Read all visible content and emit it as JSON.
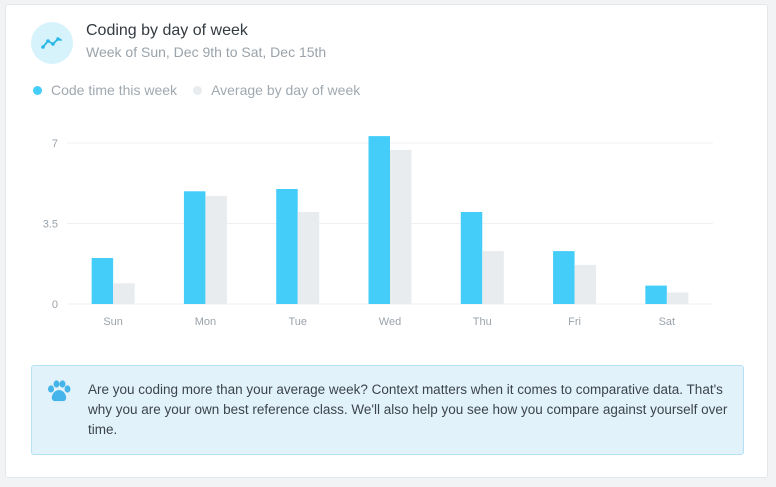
{
  "header": {
    "title": "Coding by day of week",
    "subtitle": "Week of Sun, Dec 9th to Sat, Dec 15th",
    "icon": "trend-line-icon"
  },
  "legend": {
    "items": [
      {
        "label": "Code time this week",
        "color": "#45cdfa"
      },
      {
        "label": "Average by day of week",
        "color": "#e8ecef"
      }
    ]
  },
  "chart_data": {
    "type": "bar",
    "categories": [
      "Sun",
      "Mon",
      "Tue",
      "Wed",
      "Thu",
      "Fri",
      "Sat"
    ],
    "series": [
      {
        "name": "Code time this week",
        "values": [
          2.0,
          4.9,
          5.0,
          7.3,
          4.0,
          2.3,
          0.8
        ],
        "color": "#45cdfa"
      },
      {
        "name": "Average by day of week",
        "values": [
          0.9,
          4.7,
          4.0,
          6.7,
          2.3,
          1.7,
          0.5
        ],
        "color": "#e8ecef"
      }
    ],
    "y_ticks": [
      "0",
      "3.5",
      "7"
    ],
    "ylim": [
      0,
      7
    ],
    "grid": true,
    "legend_position": "top-left",
    "title": "",
    "xlabel": "",
    "ylabel": ""
  },
  "notice": {
    "icon": "paw-icon",
    "text": "Are you coding more than your average week? Context matters when it comes to comparative data. That's why you are your own best reference class. We'll also help you see how you compare against yourself over time."
  }
}
